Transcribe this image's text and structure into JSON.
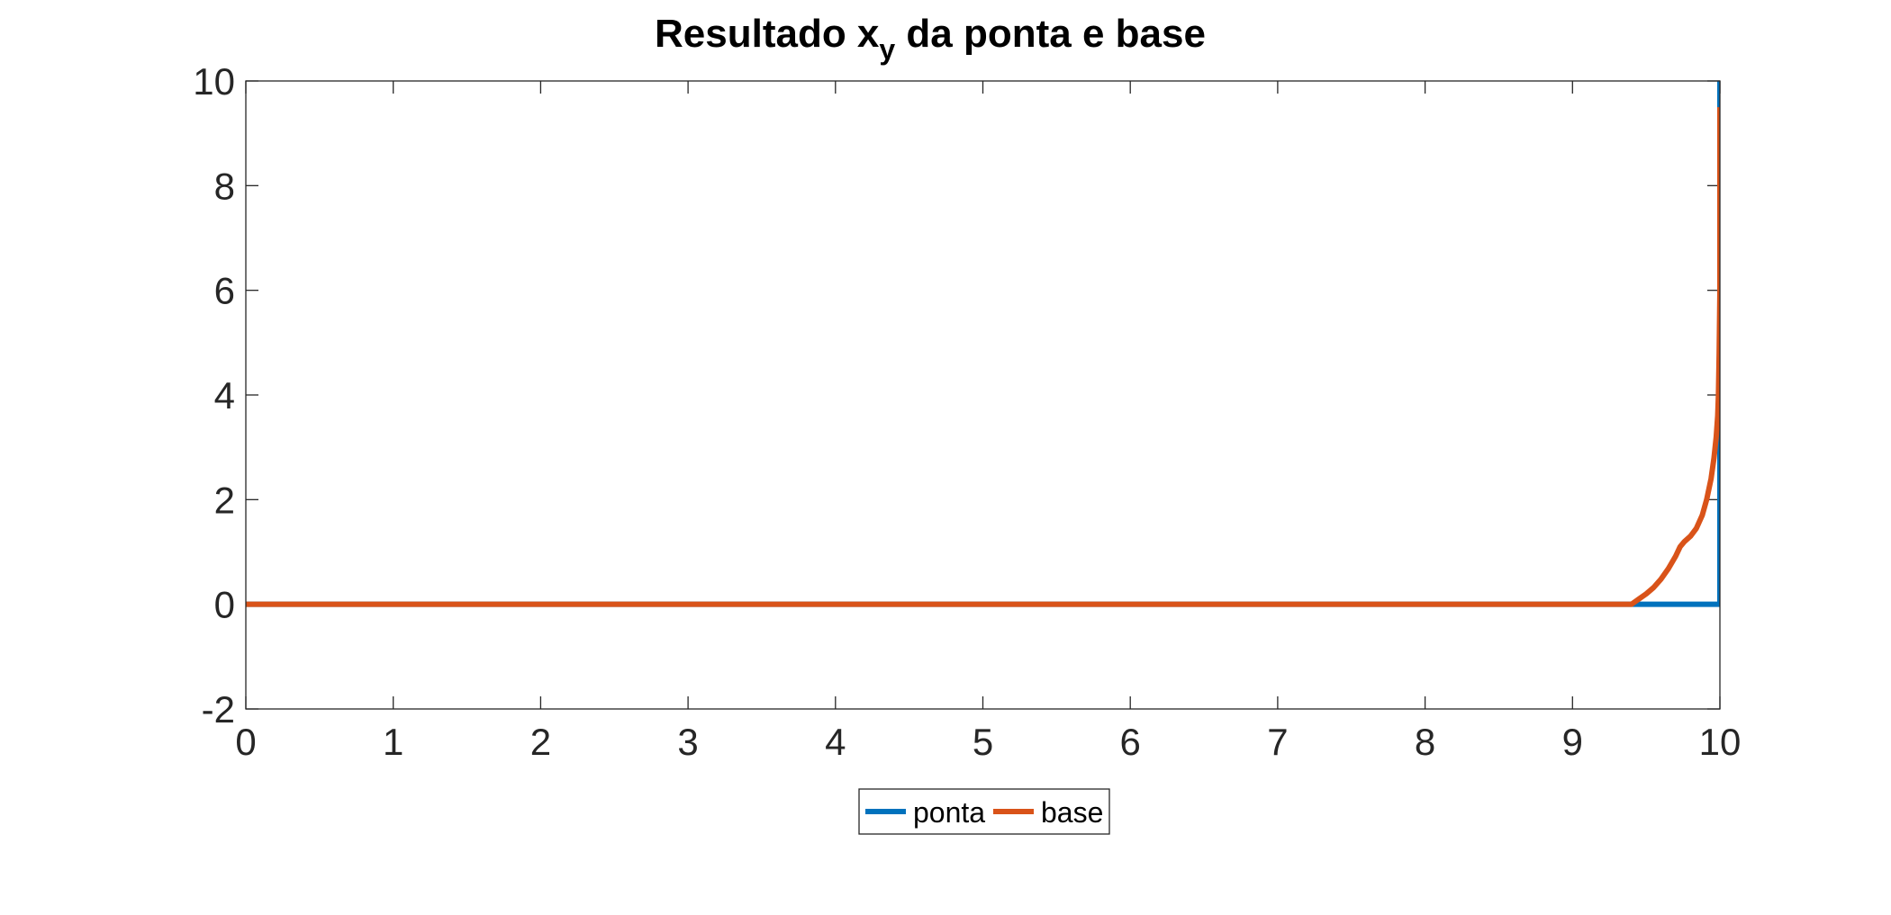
{
  "chart_data": {
    "type": "line",
    "title": {
      "prefix": "Resultado x",
      "subscript": "y",
      "suffix": " da ponta e base"
    },
    "xlabel": "",
    "ylabel": "",
    "xlim": [
      0,
      10
    ],
    "ylim": [
      -2,
      10
    ],
    "xticks": [
      0,
      1,
      2,
      3,
      4,
      5,
      6,
      7,
      8,
      9,
      10
    ],
    "yticks": [
      -2,
      0,
      2,
      4,
      6,
      8,
      10
    ],
    "grid": false,
    "legend_position": "bottom-outside",
    "series": [
      {
        "name": "ponta",
        "color": "#0072BD",
        "x": [
          0,
          9.5,
          9.7,
          9.9,
          10.0,
          10.0,
          10.0
        ],
        "y": [
          0,
          0,
          0,
          0,
          0,
          5,
          10
        ]
      },
      {
        "name": "base",
        "color": "#D95319",
        "x": [
          0,
          9.4,
          9.45,
          9.5,
          9.55,
          9.6,
          9.65,
          9.7,
          9.73,
          9.76,
          9.8,
          9.84,
          9.88,
          9.91,
          9.94,
          9.96,
          9.975,
          9.985,
          9.99,
          9.995,
          10.0,
          10.0,
          10.0
        ],
        "y": [
          0,
          0,
          0.1,
          0.2,
          0.32,
          0.48,
          0.68,
          0.92,
          1.1,
          1.2,
          1.3,
          1.45,
          1.7,
          2.0,
          2.4,
          2.8,
          3.2,
          3.6,
          4.0,
          4.8,
          6.0,
          8.0,
          9.5
        ]
      }
    ]
  }
}
